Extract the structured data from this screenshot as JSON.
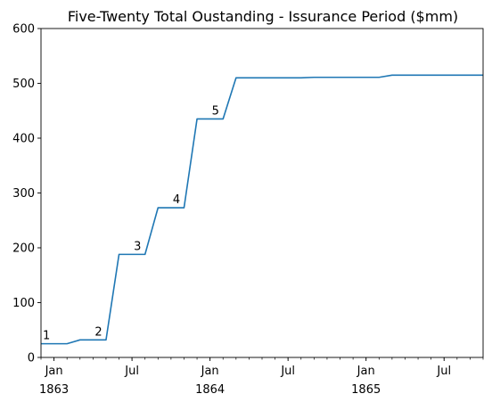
{
  "chart_data": {
    "type": "line",
    "title": "Five-Twenty Total Oustanding - Issurance Period ($mm)",
    "xlabel": "",
    "ylabel": "",
    "x": [
      "1862-12",
      "1863-01",
      "1863-02",
      "1863-03",
      "1863-04",
      "1863-05",
      "1863-06",
      "1863-07",
      "1863-08",
      "1863-09",
      "1863-10",
      "1863-11",
      "1863-12",
      "1864-01",
      "1864-02",
      "1864-03",
      "1864-04",
      "1864-05",
      "1864-06",
      "1864-07",
      "1864-08",
      "1864-09",
      "1864-10",
      "1864-11",
      "1864-12",
      "1865-01",
      "1865-02",
      "1865-03",
      "1865-04",
      "1865-05",
      "1865-06",
      "1865-07",
      "1865-08",
      "1865-09",
      "1865-10"
    ],
    "series": [
      {
        "values": [
          25,
          25,
          25,
          32,
          32,
          32,
          188,
          188,
          188,
          273,
          273,
          273,
          435,
          435,
          435,
          510,
          510,
          510,
          510,
          510,
          510,
          511,
          511,
          511,
          511,
          511,
          511,
          515,
          515,
          515,
          515,
          515,
          515,
          515,
          515
        ],
        "color": "#1f77b4"
      }
    ],
    "xlim": [
      "1862-12",
      "1865-10"
    ],
    "ylim": [
      0,
      600
    ],
    "yticks": [
      0,
      100,
      200,
      300,
      400,
      500,
      600
    ],
    "xticks": [
      {
        "x": "1863-01",
        "label": "Jan",
        "label2": "1863"
      },
      {
        "x": "1863-07",
        "label": "Jul",
        "label2": ""
      },
      {
        "x": "1864-01",
        "label": "Jan",
        "label2": "1864"
      },
      {
        "x": "1864-07",
        "label": "Jul",
        "label2": ""
      },
      {
        "x": "1865-01",
        "label": "Jan",
        "label2": "1865"
      },
      {
        "x": "1865-07",
        "label": "Jul",
        "label2": ""
      }
    ],
    "annotations": [
      {
        "text": "1",
        "x": "1862-12",
        "y": 25
      },
      {
        "text": "2",
        "x": "1863-04",
        "y": 32
      },
      {
        "text": "3",
        "x": "1863-07",
        "y": 188
      },
      {
        "text": "4",
        "x": "1863-10",
        "y": 273
      },
      {
        "text": "5",
        "x": "1864-01",
        "y": 435
      }
    ],
    "grid": false,
    "legend": "none"
  }
}
